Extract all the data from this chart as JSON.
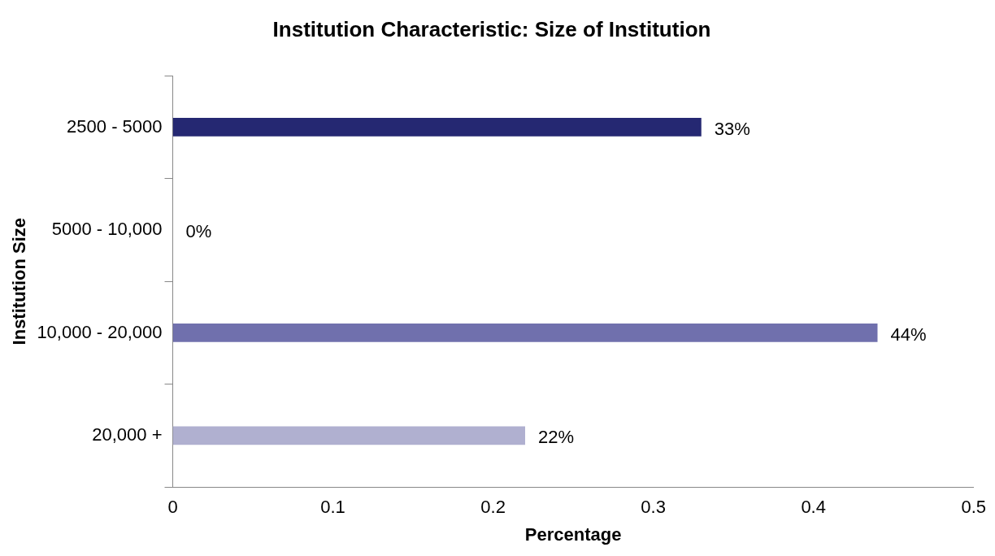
{
  "chart_data": {
    "type": "bar",
    "orientation": "horizontal",
    "title": "Institution Characteristic: Size of Institution",
    "xlabel": "Percentage",
    "ylabel": "Institution Size",
    "categories": [
      "2500 - 5000",
      "5000 - 10,000",
      "10,000 - 20,000",
      "20,000 +"
    ],
    "values": [
      0.33,
      0,
      0.44,
      0.22
    ],
    "colors": [
      "#252872",
      "#4a4c8e",
      "#7070ad",
      "#b0b0d0"
    ],
    "value_labels": [
      "33%",
      "0%",
      "44%",
      "22%"
    ],
    "xlim": [
      0,
      0.5
    ],
    "xticks": [
      0,
      0.1,
      0.2,
      0.3,
      0.4,
      0.5
    ]
  }
}
